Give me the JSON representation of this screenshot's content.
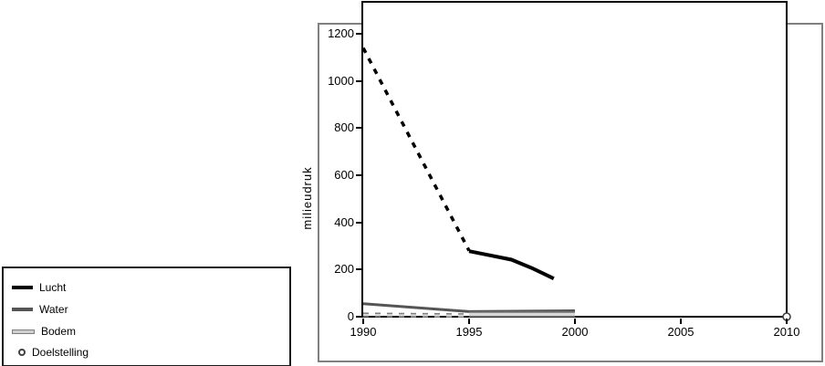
{
  "colors": {
    "line_lucht": "#000000",
    "line_water": "#555555",
    "line_bodem_fill": "#cfcfcf",
    "line_bodem_outline": "#7f7f7f",
    "marker_doelstelling": "#404040",
    "frame_border": "#808080",
    "plot_border": "#000000"
  },
  "legend": {
    "items": [
      {
        "label": "Lucht",
        "swatch": "thick-black-line"
      },
      {
        "label": "Water",
        "swatch": "thick-dark-gray-line"
      },
      {
        "label": "Bodem",
        "swatch": "outlined-light-gray-line"
      },
      {
        "label": "Doelstelling",
        "swatch": "open-circle-marker"
      }
    ]
  },
  "chart_data": {
    "type": "line",
    "title": "",
    "xlabel": "",
    "ylabel": "milieudruk",
    "xlim": [
      1990,
      2010
    ],
    "ylim": [
      0,
      1200
    ],
    "xticks": [
      1990,
      1995,
      2000,
      2005,
      2010
    ],
    "yticks": [
      0,
      200,
      400,
      600,
      800,
      1000,
      1200
    ],
    "grid": false,
    "legend_position": "outside-bottom-left",
    "series": [
      {
        "name": "Lucht",
        "segment": "1990-1995",
        "line": "dashed",
        "color": "#000000",
        "width": 3.5,
        "x": [
          1990,
          1995
        ],
        "y": [
          1140,
          280
        ]
      },
      {
        "name": "Lucht",
        "segment": "1995-1999",
        "line": "solid",
        "color": "#000000",
        "width": 4,
        "x": [
          1995,
          1996,
          1997,
          1998,
          1999
        ],
        "y": [
          278,
          260,
          242,
          205,
          162
        ]
      },
      {
        "name": "Water",
        "segment": "1990-2000",
        "line": "solid",
        "color": "#555555",
        "width": 3,
        "x": [
          1990,
          1995,
          2000
        ],
        "y": [
          55,
          22,
          25
        ]
      },
      {
        "name": "Bodem",
        "segment": "1990-1995",
        "line": "dashed-outlined",
        "color": "#d9d9d9",
        "outline": "#7f7f7f",
        "width": 5,
        "x": [
          1990,
          1995
        ],
        "y": [
          8,
          5
        ]
      },
      {
        "name": "Bodem",
        "segment": "1995-2000",
        "line": "solid-outlined",
        "color": "#d9d9d9",
        "outline": "#7f7f7f",
        "width": 6,
        "x": [
          1995,
          2000
        ],
        "y": [
          10,
          10
        ]
      },
      {
        "name": "Doelstelling",
        "line": "marker-only",
        "marker": "open-circle",
        "color": "#404040",
        "x": [
          2010
        ],
        "y": [
          0
        ]
      }
    ]
  }
}
